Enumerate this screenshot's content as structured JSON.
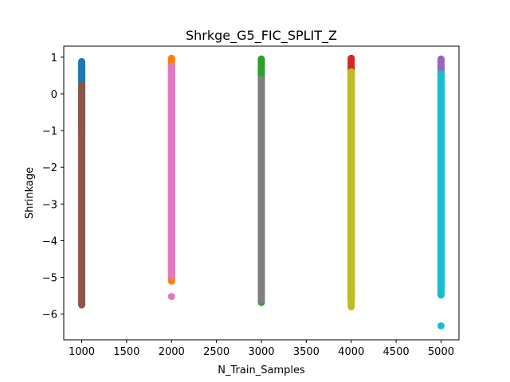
{
  "chart_data": {
    "type": "scatter",
    "title": "Shrkge_G5_FIC_SPLIT_Z",
    "xlabel": "N_Train_Samples",
    "ylabel": "Shrinkage",
    "xlim": [
      800,
      5200
    ],
    "ylim": [
      -6.7,
      1.3
    ],
    "xticks": [
      1000,
      1500,
      2000,
      2500,
      3000,
      3500,
      4000,
      4500,
      5000
    ],
    "yticks": [
      1,
      0,
      -1,
      -2,
      -3,
      -4,
      -5,
      -6
    ],
    "grid": false,
    "legend": "none",
    "series": [
      {
        "color": "#1f77b4",
        "x": 1000,
        "y_range": [
          -1.0,
          0.88
        ],
        "y_extra": []
      },
      {
        "color": "#8c564b",
        "x": 1000,
        "y_range": [
          -5.75,
          0.25
        ],
        "y_extra": []
      },
      {
        "color": "#ff7f0e",
        "x": 2000,
        "y_range": [
          -5.1,
          0.97
        ],
        "y_extra": []
      },
      {
        "color": "#e377c2",
        "x": 2000,
        "y_range": [
          -4.95,
          0.75
        ],
        "y_extra": [
          -5.52
        ]
      },
      {
        "color": "#2ca02c",
        "x": 3000,
        "y_range": [
          -5.68,
          0.95
        ],
        "y_extra": []
      },
      {
        "color": "#7f7f7f",
        "x": 3000,
        "y_range": [
          -5.62,
          0.4
        ],
        "y_extra": []
      },
      {
        "color": "#d62728",
        "x": 4000,
        "y_range": [
          -5.6,
          0.97
        ],
        "y_extra": []
      },
      {
        "color": "#bcbd22",
        "x": 4000,
        "y_range": [
          -5.8,
          0.6
        ],
        "y_extra": []
      },
      {
        "color": "#9467bd",
        "x": 5000,
        "y_range": [
          -5.3,
          0.95
        ],
        "y_extra": []
      },
      {
        "color": "#17becf",
        "x": 5000,
        "y_range": [
          -5.48,
          0.55
        ],
        "y_extra": [
          -6.32
        ]
      }
    ]
  }
}
